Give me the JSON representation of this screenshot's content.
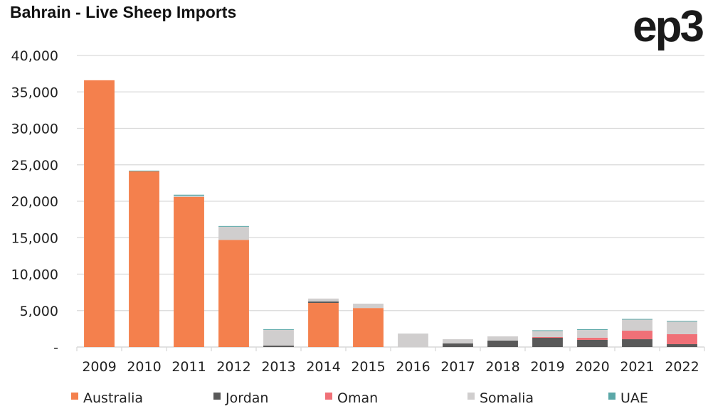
{
  "chart_data": {
    "type": "bar",
    "stacked": true,
    "title": "Bahrain - Live Sheep Imports",
    "logo": "ep3",
    "xlabel": "",
    "ylabel": "",
    "ylim": [
      0,
      40000
    ],
    "yticks": [
      0,
      5000,
      10000,
      15000,
      20000,
      25000,
      30000,
      35000,
      40000
    ],
    "ytick_labels": [
      "-",
      "5,000",
      "10,000",
      "15,000",
      "20,000",
      "25,000",
      "30,000",
      "35,000",
      "40,000"
    ],
    "grid": true,
    "legend_position": "bottom",
    "categories": [
      "2009",
      "2010",
      "2011",
      "2012",
      "2013",
      "2014",
      "2015",
      "2016",
      "2017",
      "2018",
      "2019",
      "2020",
      "2021",
      "2022"
    ],
    "series": [
      {
        "name": "Australia",
        "color": "#F4804D",
        "values": [
          36600,
          24100,
          20600,
          14700,
          0,
          6050,
          5350,
          0,
          0,
          0,
          0,
          0,
          0,
          0
        ]
      },
      {
        "name": "Jordan",
        "color": "#595959",
        "values": [
          0,
          0,
          0,
          0,
          200,
          200,
          0,
          0,
          500,
          880,
          1270,
          980,
          1070,
          390
        ]
      },
      {
        "name": "Oman",
        "color": "#F07077",
        "values": [
          0,
          0,
          0,
          0,
          0,
          0,
          0,
          0,
          0,
          0,
          100,
          300,
          1170,
          1370
        ]
      },
      {
        "name": "Somalia",
        "color": "#D0CECE",
        "values": [
          0,
          0,
          150,
          1800,
          2150,
          400,
          600,
          1850,
          570,
          580,
          850,
          1100,
          1560,
          1760
        ]
      },
      {
        "name": "UAE",
        "color": "#5BA8A8",
        "values": [
          0,
          100,
          150,
          100,
          100,
          0,
          0,
          0,
          0,
          0,
          80,
          60,
          50,
          60
        ]
      }
    ]
  }
}
